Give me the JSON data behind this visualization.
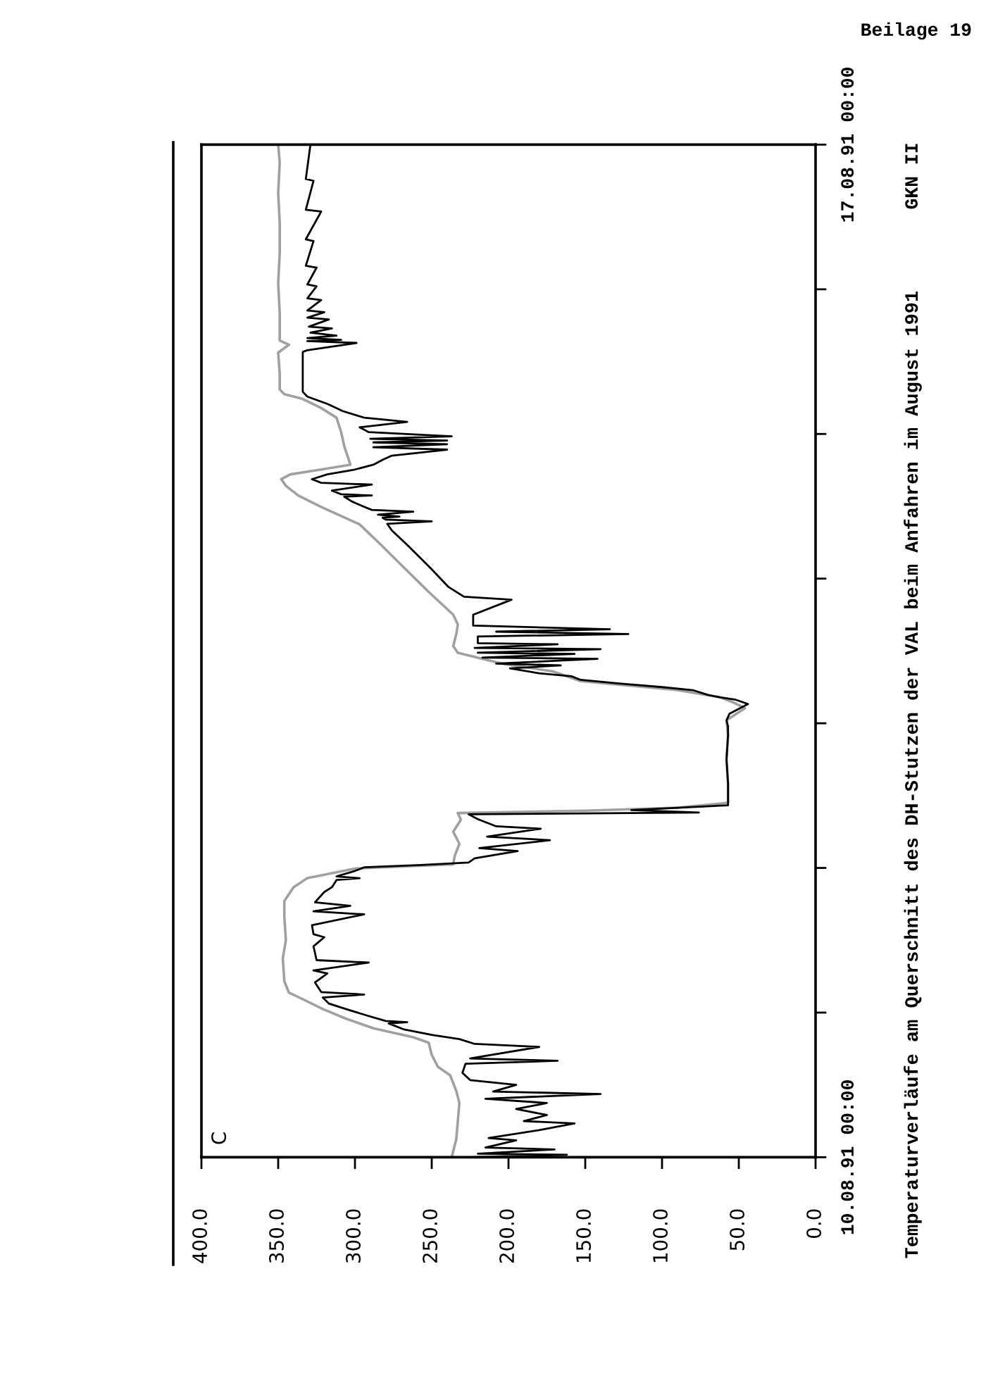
{
  "chart_data": {
    "type": "line",
    "orientation": "horizontal",
    "title": "Temperaturverläufe am Querschnitt des DH-Stutzen der VAL beim Anfahren im August 1991",
    "annotations": [
      "Beilage 19",
      "GKN II",
      "C"
    ],
    "xlim": [
      400,
      0
    ],
    "xticks": [
      {
        "value": 400,
        "label": "400.0"
      },
      {
        "value": 350,
        "label": "350.0"
      },
      {
        "value": 300,
        "label": "300.0"
      },
      {
        "value": 250,
        "label": "250.0"
      },
      {
        "value": 200,
        "label": "200.0"
      },
      {
        "value": 150,
        "label": "150.0"
      },
      {
        "value": 100,
        "label": "100.0"
      },
      {
        "value": 50,
        "label": "50.0"
      },
      {
        "value": 0,
        "label": "0.0"
      }
    ],
    "ylim": [
      "1991-08-10T00:00",
      "1991-08-17T00:00"
    ],
    "yticks": [
      {
        "value": "1991-08-10T00:00",
        "label": "10.08.91 00:00"
      },
      {
        "value": "1991-08-11T00:00",
        "label": null
      },
      {
        "value": "1991-08-12T00:00",
        "label": null
      },
      {
        "value": "1991-08-13T00:00",
        "label": null
      },
      {
        "value": "1991-08-14T00:00",
        "label": null
      },
      {
        "value": "1991-08-15T00:00",
        "label": null
      },
      {
        "value": "1991-08-16T00:00",
        "label": null
      },
      {
        "value": "1991-08-17T00:00",
        "label": "17.08.91 00:00"
      }
    ],
    "series": [
      {
        "color": "#a0a0a0",
        "x": [
          "1991-08-10T00:00",
          "1991-08-10T03:00",
          "1991-08-10T06:00",
          "1991-08-10T09:00",
          "1991-08-10T11:00",
          "1991-08-10T13:36",
          "1991-08-10T15:00",
          "1991-08-10T17:00",
          "1991-08-10T19:00",
          "1991-08-10T19:54",
          "1991-08-10T21:24",
          "1991-08-10T23:00",
          "1991-08-11T00:36",
          "1991-08-11T02:06",
          "1991-08-11T03:18",
          "1991-08-11T05:12",
          "1991-08-11T09:00",
          "1991-08-11T12:00",
          "1991-08-11T16:00",
          "1991-08-11T18:30",
          "1991-08-11T20:48",
          "1991-08-11T22:18",
          "1991-08-11T23:54",
          "1991-08-12T00:36",
          "1991-08-12T02:00",
          "1991-08-12T04:00",
          "1991-08-12T06:00",
          "1991-08-12T08:00",
          "1991-08-12T09:06",
          "1991-08-12T09:30",
          "1991-08-12T10:00",
          "1991-08-12T10:48",
          "1991-08-12T14:00",
          "1991-08-12T18:00",
          "1991-08-12T22:00",
          "1991-08-13T00:30",
          "1991-08-13T02:30",
          "1991-08-13T03:30",
          "1991-08-13T04:18",
          "1991-08-13T05:30",
          "1991-08-13T07:00",
          "1991-08-13T08:36",
          "1991-08-13T09:48",
          "1991-08-13T10:30",
          "1991-08-13T11:42",
          "1991-08-13T12:48",
          "1991-08-13T14:48",
          "1991-08-13T16:24",
          "1991-08-13T18:00",
          "1991-08-13T21:48",
          "1991-08-14T01:48",
          "1991-08-14T05:36",
          "1991-08-14T09:00",
          "1991-08-14T11:54",
          "1991-08-14T13:48",
          "1991-08-14T15:24",
          "1991-08-14T16:30",
          "1991-08-14T17:18",
          "1991-08-14T18:06",
          "1991-08-14T18:54",
          "1991-08-14T22:00",
          "1991-08-15T00:18",
          "1991-08-15T02:42",
          "1991-08-15T04:18",
          "1991-08-15T05:48",
          "1991-08-15T06:36",
          "1991-08-15T07:24",
          "1991-08-15T10:00",
          "1991-08-15T13:30",
          "1991-08-15T14:48",
          "1991-08-15T15:30",
          "1991-08-15T20:00",
          "1991-08-16T01:00",
          "1991-08-16T06:00",
          "1991-08-16T11:00",
          "1991-08-16T16:00",
          "1991-08-16T21:00",
          "1991-08-17T00:00"
        ],
        "values": [
          237,
          234,
          233,
          232,
          234,
          238,
          246,
          250,
          252,
          262,
          288,
          306,
          321,
          333,
          343,
          346,
          347,
          345,
          346,
          346,
          340,
          331,
          300,
          236,
          235,
          232,
          236,
          231,
          233,
          150,
          90,
          57,
          57,
          58,
          57,
          58,
          46,
          54,
          62,
          90,
          153,
          171,
          202,
          214,
          233,
          236,
          234,
          233,
          236,
          252,
          268,
          283,
          297,
          322,
          337,
          345,
          348,
          342,
          322,
          303,
          307,
          309,
          312,
          322,
          334,
          346,
          349,
          349,
          350,
          343,
          349,
          349,
          350,
          349,
          349,
          350,
          349,
          350
        ]
      },
      {
        "color": "#000000",
        "x": [
          "1991-08-10T00:00",
          "1991-08-10T00:24",
          "1991-08-10T00:36",
          "1991-08-10T01:18",
          "1991-08-10T01:36",
          "1991-08-10T02:48",
          "1991-08-10T03:12",
          "1991-08-10T04:30",
          "1991-08-10T05:36",
          "1991-08-10T06:00",
          "1991-08-10T07:00",
          "1991-08-10T08:00",
          "1991-08-10T09:00",
          "1991-08-10T09:42",
          "1991-08-10T10:30",
          "1991-08-10T10:54",
          "1991-08-10T12:00",
          "1991-08-10T12:48",
          "1991-08-10T14:00",
          "1991-08-10T15:30",
          "1991-08-10T16:00",
          "1991-08-10T16:24",
          "1991-08-10T18:18",
          "1991-08-10T18:48",
          "1991-08-10T19:36",
          "1991-08-10T20:18",
          "1991-08-10T21:12",
          "1991-08-10T22:12",
          "1991-08-10T22:24",
          "1991-08-10T22:36",
          "1991-08-10T23:30",
          "1991-08-11T00:36",
          "1991-08-11T01:30",
          "1991-08-11T02:30",
          "1991-08-11T03:00",
          "1991-08-11T03:24",
          "1991-08-11T05:00",
          "1991-08-11T06:30",
          "1991-08-11T07:00",
          "1991-08-11T08:18",
          "1991-08-11T08:42",
          "1991-08-11T11:00",
          "1991-08-11T12:30",
          "1991-08-11T13:00",
          "1991-08-11T14:30",
          "1991-08-11T16:18",
          "1991-08-11T16:48",
          "1991-08-11T17:42",
          "1991-08-11T18:18",
          "1991-08-11T20:00",
          "1991-08-11T20:48",
          "1991-08-11T22:00",
          "1991-08-11T22:18",
          "1991-08-11T22:36",
          "1991-08-11T23:30",
          "1991-08-12T00:06",
          "1991-08-12T00:30",
          "1991-08-12T00:54",
          "1991-08-12T01:36",
          "1991-08-12T02:48",
          "1991-08-12T03:18",
          "1991-08-12T04:36",
          "1991-08-12T05:12",
          "1991-08-12T06:30",
          "1991-08-12T06:54",
          "1991-08-12T08:06",
          "1991-08-12T08:54",
          "1991-08-12T09:12",
          "1991-08-12T09:36",
          "1991-08-12T10:24",
          "1991-08-12T14:00",
          "1991-08-12T18:00",
          "1991-08-12T22:00",
          "1991-08-12T23:30",
          "1991-08-13T00:30",
          "1991-08-13T01:36",
          "1991-08-13T03:12",
          "1991-08-13T03:54",
          "1991-08-13T04:18",
          "1991-08-13T04:42",
          "1991-08-13T05:30",
          "1991-08-13T06:00",
          "1991-08-13T06:36",
          "1991-08-13T07:12",
          "1991-08-13T07:48",
          "1991-08-13T08:18",
          "1991-08-13T09:06",
          "1991-08-13T09:36",
          "1991-08-13T09:54",
          "1991-08-13T10:42",
          "1991-08-13T10:54",
          "1991-08-13T11:30",
          "1991-08-13T11:42",
          "1991-08-13T12:18",
          "1991-08-13T12:30",
          "1991-08-13T13:06",
          "1991-08-13T13:18",
          "1991-08-13T14:24",
          "1991-08-13T14:48",
          "1991-08-13T15:12",
          "1991-08-13T15:36",
          "1991-08-13T16:12",
          "1991-08-13T18:00",
          "1991-08-13T20:30",
          "1991-08-13T21:00",
          "1991-08-13T22:36",
          "1991-08-14T01:48",
          "1991-08-14T05:36",
          "1991-08-14T08:00",
          "1991-08-14T09:06",
          "1991-08-14T09:30",
          "1991-08-14T09:48",
          "1991-08-14T10:06",
          "1991-08-14T10:18",
          "1991-08-14T10:36",
          "1991-08-14T11:06",
          "1991-08-14T11:24",
          "1991-08-14T11:54",
          "1991-08-14T12:48",
          "1991-08-14T13:36",
          "1991-08-14T13:48",
          "1991-08-14T14:00",
          "1991-08-14T14:36",
          "1991-08-14T15:36",
          "1991-08-14T15:54",
          "1991-08-14T16:30",
          "1991-08-14T17:18",
          "1991-08-14T18:06",
          "1991-08-14T18:54",
          "1991-08-14T19:42",
          "1991-08-14T20:24",
          "1991-08-14T21:24",
          "1991-08-14T21:48",
          "1991-08-14T22:18",
          "1991-08-14T22:36",
          "1991-08-14T22:54",
          "1991-08-14T23:12",
          "1991-08-14T23:36",
          "1991-08-15T00:18",
          "1991-08-15T01:06",
          "1991-08-15T02:00",
          "1991-08-15T02:42",
          "1991-08-15T03:48",
          "1991-08-15T05:00",
          "1991-08-15T06:12",
          "1991-08-15T07:00",
          "1991-08-15T13:36",
          "1991-08-15T13:54",
          "1991-08-15T15:06",
          "1991-08-15T15:24",
          "1991-08-15T15:36",
          "1991-08-15T15:54",
          "1991-08-15T16:18",
          "1991-08-15T16:48",
          "1991-08-15T17:30",
          "1991-08-15T17:48",
          "1991-08-15T19:00",
          "1991-08-15T19:18",
          "1991-08-15T20:12",
          "1991-08-15T20:30",
          "1991-08-15T22:12",
          "1991-08-15T22:30",
          "1991-08-16T00:30",
          "1991-08-16T00:48",
          "1991-08-16T03:36",
          "1991-08-16T03:54",
          "1991-08-16T08:00",
          "1991-08-16T08:18",
          "1991-08-16T12:54",
          "1991-08-16T13:12",
          "1991-08-16T18:00",
          "1991-08-16T18:18",
          "1991-08-17T00:00"
        ],
        "values": [
          225,
          162,
          220,
          170,
          215,
          195,
          213,
          180,
          157,
          190,
          175,
          195,
          175,
          215,
          140,
          210,
          195,
          225,
          230,
          228,
          168,
          225,
          180,
          222,
          232,
          250,
          268,
          278,
          266,
          280,
          292,
          306,
          317,
          321,
          294,
          322,
          326,
          318,
          327,
          291,
          325,
          327,
          320,
          327,
          328,
          294,
          327,
          303,
          326,
          320,
          315,
          312,
          297,
          312,
          300,
          294,
          257,
          226,
          222,
          194,
          219,
          173,
          214,
          179,
          208,
          220,
          226,
          76,
          120,
          57,
          57,
          58,
          57,
          57,
          58,
          56,
          44,
          52,
          62,
          70,
          80,
          100,
          128,
          153,
          159,
          180,
          199,
          166,
          208,
          142,
          217,
          157,
          220,
          140,
          222,
          168,
          220,
          220,
          122,
          208,
          134,
          223,
          223,
          198,
          229,
          239,
          251,
          266,
          276,
          279,
          250,
          280,
          282,
          271,
          285,
          262,
          289,
          294,
          302,
          307,
          289,
          309,
          315,
          289,
          322,
          328,
          318,
          300,
          288,
          282,
          276,
          240,
          288,
          240,
          288,
          240,
          290,
          237,
          291,
          297,
          266,
          294,
          308,
          318,
          331,
          334,
          334,
          331,
          299,
          331,
          309,
          331,
          312,
          329,
          315,
          330,
          317,
          331,
          320,
          331,
          322,
          331,
          325,
          331,
          325,
          332,
          327,
          332,
          322,
          332,
          327,
          332,
          329
        ]
      }
    ]
  }
}
